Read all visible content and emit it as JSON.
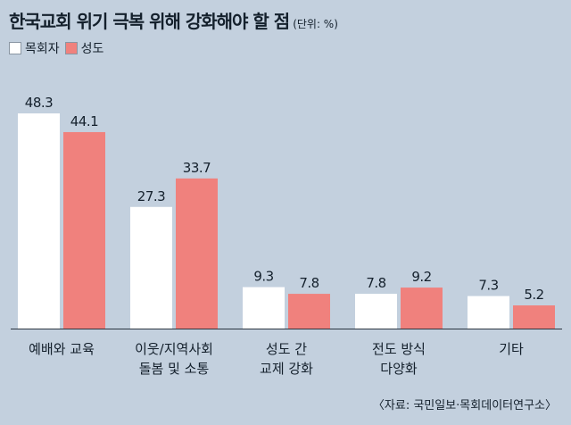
{
  "title": "한국교회 위기 극복 위해 강화해야 할 점",
  "unit": "(단위: %)",
  "legend": [
    {
      "label": "목회자",
      "color": "#ffffff"
    },
    {
      "label": "성도",
      "color": "#f0817d"
    }
  ],
  "source": "〈자료: 국민일보·목회데이터연구소〉",
  "chart_data": {
    "type": "bar",
    "title": "한국교회 위기 극복 위해 강화해야 할 점",
    "unit": "%",
    "categories": [
      [
        "예배와 교육"
      ],
      [
        "이웃/지역사회",
        "돌봄 및 소통"
      ],
      [
        "성도 간",
        "교제 강화"
      ],
      [
        "전도 방식",
        "다양화"
      ],
      [
        "기타"
      ]
    ],
    "series": [
      {
        "name": "목회자",
        "color": "#ffffff",
        "values": [
          48.3,
          27.3,
          9.3,
          7.8,
          7.3
        ]
      },
      {
        "name": "성도",
        "color": "#f0817d",
        "values": [
          44.1,
          33.7,
          7.8,
          9.2,
          5.2
        ]
      }
    ],
    "ylim": [
      0,
      48.3
    ],
    "legend_position": "top-left",
    "grid": false
  }
}
